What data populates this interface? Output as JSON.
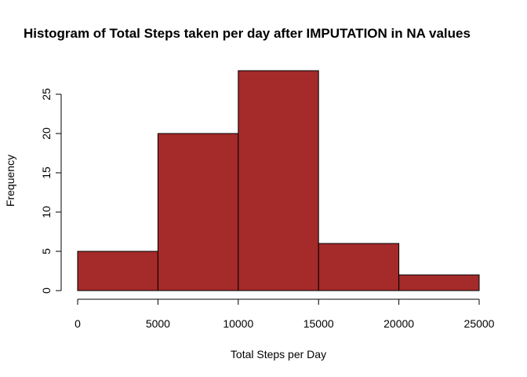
{
  "chart_data": {
    "type": "bar",
    "title": "Histogram of Total Steps taken per day after IMPUTATION in NA values",
    "xlabel": "Total Steps per Day",
    "ylabel": "Frequency",
    "bins": [
      {
        "start": 0,
        "end": 5000,
        "count": 5
      },
      {
        "start": 5000,
        "end": 10000,
        "count": 20
      },
      {
        "start": 10000,
        "end": 15000,
        "count": 28
      },
      {
        "start": 15000,
        "end": 20000,
        "count": 6
      },
      {
        "start": 20000,
        "end": 25000,
        "count": 2
      }
    ],
    "xlim": [
      0,
      25000
    ],
    "ylim": [
      0,
      28
    ],
    "x_ticks": [
      0,
      5000,
      10000,
      15000,
      20000,
      25000
    ],
    "y_ticks": [
      0,
      5,
      10,
      15,
      20,
      25
    ],
    "grid": false,
    "legend": "none",
    "bar_color": "#a52a2a",
    "bar_edge_color": "#000000"
  }
}
